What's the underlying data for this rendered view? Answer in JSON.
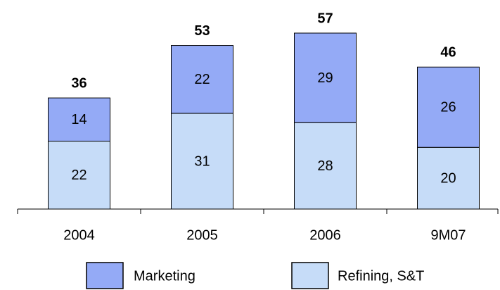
{
  "chart_data": {
    "type": "stacked_bar",
    "categories": [
      "2004",
      "2005",
      "2006",
      "9M07"
    ],
    "series": [
      {
        "name": "Refining, S&T",
        "color": "#c6dcf8",
        "values": [
          22,
          31,
          28,
          20
        ]
      },
      {
        "name": "Marketing",
        "color": "#94aaf6",
        "values": [
          14,
          22,
          29,
          26
        ]
      }
    ],
    "totals": [
      36,
      53,
      57,
      46
    ]
  }
}
